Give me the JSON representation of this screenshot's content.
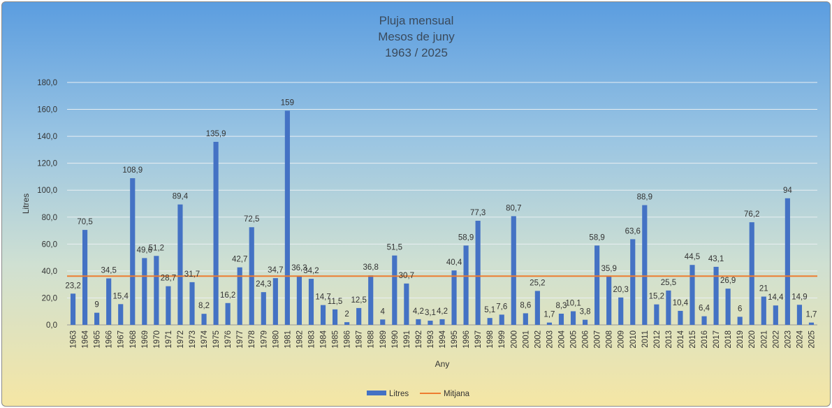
{
  "chart_data": {
    "type": "bar",
    "title": [
      "Pluja mensual",
      "Mesos de juny",
      "1963 / 2025"
    ],
    "xlabel": "Any",
    "ylabel": "Litres",
    "ylim": [
      0,
      180
    ],
    "yticks": [
      "0,0",
      "20,0",
      "40,0",
      "60,0",
      "80,0",
      "100,0",
      "120,0",
      "140,0",
      "160,0",
      "180,0"
    ],
    "grid": true,
    "legend_position": "bottom",
    "categories": [
      "1963",
      "1964",
      "1965",
      "1966",
      "1967",
      "1968",
      "1969",
      "1970",
      "1971",
      "1972",
      "1973",
      "1974",
      "1975",
      "1976",
      "1977",
      "1978",
      "1979",
      "1980",
      "1981",
      "1982",
      "1983",
      "1984",
      "1985",
      "1986",
      "1987",
      "1988",
      "1989",
      "1990",
      "1991",
      "1992",
      "1993",
      "1994",
      "1995",
      "1996",
      "1997",
      "1998",
      "1999",
      "2000",
      "2001",
      "2002",
      "2003",
      "2004",
      "2005",
      "2006",
      "2007",
      "2008",
      "2009",
      "2010",
      "2011",
      "2012",
      "2013",
      "2014",
      "2015",
      "2016",
      "2017",
      "2018",
      "2019",
      "2020",
      "2021",
      "2022",
      "2023",
      "2024",
      "2025"
    ],
    "series": [
      {
        "name": "Litres",
        "kind": "bar",
        "color": "#4472c4",
        "values": [
          23.2,
          70.5,
          9,
          34.5,
          15.4,
          108.9,
          49.6,
          51.2,
          28.7,
          89.4,
          31.7,
          8.2,
          135.9,
          16.2,
          42.7,
          72.5,
          24.3,
          34.7,
          159,
          36.3,
          34.2,
          14.7,
          11.5,
          2,
          12.5,
          36.8,
          4,
          51.5,
          30.7,
          4.2,
          3.1,
          4.2,
          40.4,
          58.9,
          77.3,
          5.1,
          7.6,
          80.7,
          8.6,
          25.2,
          1.7,
          8.3,
          10.1,
          3.8,
          58.9,
          35.9,
          20.3,
          63.6,
          88.9,
          15.2,
          25.5,
          10.4,
          44.5,
          6.4,
          43.1,
          26.9,
          6,
          76.2,
          21,
          14.4,
          94,
          14.9,
          1.7
        ],
        "labels": [
          "23,2",
          "70,5",
          "9",
          "34,5",
          "15,4",
          "108,9",
          "49,6",
          "51,2",
          "28,7",
          "89,4",
          "31,7",
          "8,2",
          "135,9",
          "16,2",
          "42,7",
          "72,5",
          "24,3",
          "34,7",
          "159",
          "36,3",
          "34,2",
          "14,7",
          "11,5",
          "2",
          "12,5",
          "36,8",
          "4",
          "51,5",
          "30,7",
          "4,2",
          "3,1",
          "4,2",
          "40,4",
          "58,9",
          "77,3",
          "5,1",
          "7,6",
          "80,7",
          "8,6",
          "25,2",
          "1,7",
          "8,3",
          "10,1",
          "3,8",
          "58,9",
          "35,9",
          "20,3",
          "63,6",
          "88,9",
          "15,2",
          "25,5",
          "10,4",
          "44,5",
          "6,4",
          "43,1",
          "26,9",
          "6",
          "76,2",
          "21",
          "14,4",
          "94",
          "14,9",
          "1,7"
        ]
      },
      {
        "name": "Mitjana",
        "kind": "line",
        "color": "#ed7d31",
        "value": 36.2
      }
    ]
  }
}
